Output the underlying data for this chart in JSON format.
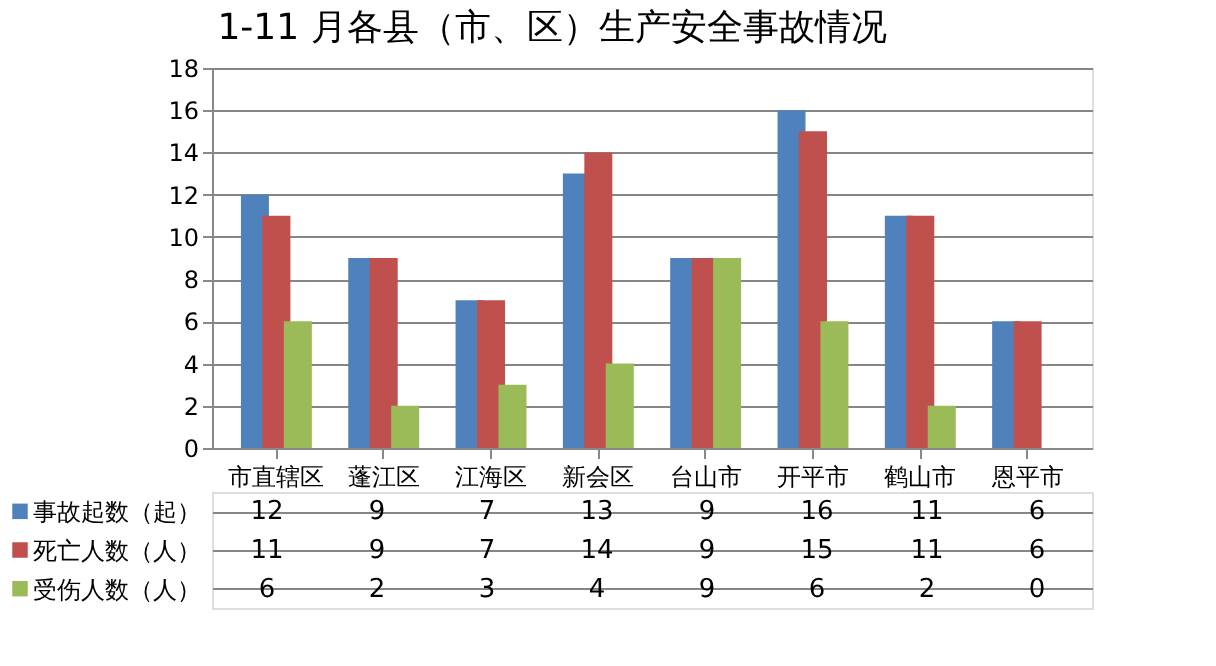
{
  "chart_data": {
    "type": "bar",
    "title": "1-11 月各县（市、区）生产安全事故情况",
    "categories": [
      "市直辖区",
      "蓬江区",
      "江海区",
      "新会区",
      "台山市",
      "开平市",
      "鹤山市",
      "恩平市"
    ],
    "series": [
      {
        "name": "事故起数（起）",
        "color": "#4f81bd",
        "values": [
          12,
          9,
          7,
          13,
          9,
          16,
          11,
          6
        ]
      },
      {
        "name": "死亡人数（人）",
        "color": "#c0504d",
        "values": [
          11,
          9,
          7,
          14,
          9,
          15,
          11,
          6
        ]
      },
      {
        "name": "受伤人数（人）",
        "color": "#9bbb59",
        "values": [
          6,
          2,
          3,
          4,
          9,
          6,
          2,
          0
        ]
      }
    ],
    "ylim": [
      0,
      18
    ],
    "yticks": [
      0,
      2,
      4,
      6,
      8,
      10,
      12,
      14,
      16,
      18
    ],
    "grid": "y",
    "legend": "bottom",
    "data_labels": true
  }
}
